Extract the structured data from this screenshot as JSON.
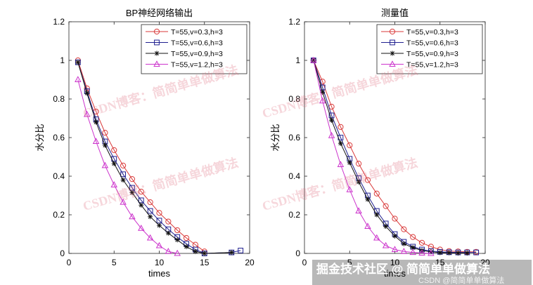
{
  "chart_data": [
    {
      "type": "line",
      "title": "BP神经网络输出",
      "xlabel": "times",
      "ylabel": "水分比",
      "xlim": [
        0,
        20
      ],
      "ylim": [
        0,
        1.2
      ],
      "xticks": [
        "0",
        "5",
        "10",
        "15",
        "20"
      ],
      "yticks": [
        "0",
        "0.2",
        "0.4",
        "0.6",
        "0.8",
        "1",
        "1.2"
      ],
      "grid": false,
      "legend_position": "top-right",
      "series": [
        {
          "name": "T=55,v=0.3,h=3",
          "color": "#d93a3a",
          "marker": "circle",
          "x": [
            1,
            2,
            3,
            4,
            5,
            6,
            7,
            8,
            9,
            10,
            11,
            12,
            13,
            14,
            15
          ],
          "y": [
            1.0,
            0.855,
            0.735,
            0.625,
            0.535,
            0.455,
            0.385,
            0.32,
            0.265,
            0.21,
            0.165,
            0.12,
            0.08,
            0.045,
            0.01
          ]
        },
        {
          "name": "T=55,v=0.6,h=3",
          "color": "#1f1f8f",
          "marker": "square",
          "x": [
            1,
            2,
            3,
            4,
            5,
            6,
            7,
            8,
            9,
            10,
            11,
            12,
            13,
            14,
            15,
            18,
            19
          ],
          "y": [
            0.99,
            0.84,
            0.695,
            0.58,
            0.49,
            0.41,
            0.34,
            0.275,
            0.22,
            0.17,
            0.125,
            0.085,
            0.05,
            0.02,
            0.0,
            0.005,
            0.015
          ]
        },
        {
          "name": "T=55,v=0.9,h=3",
          "color": "#111111",
          "marker": "asterisk",
          "x": [
            1,
            2,
            3,
            4,
            5,
            6,
            7,
            8,
            9,
            10,
            11,
            12,
            13,
            14,
            15,
            18
          ],
          "y": [
            0.99,
            0.83,
            0.68,
            0.56,
            0.465,
            0.38,
            0.315,
            0.25,
            0.19,
            0.145,
            0.105,
            0.07,
            0.035,
            0.01,
            0.0,
            0.005
          ]
        },
        {
          "name": "T=55,v=1.2,h=3",
          "color": "#cc33cc",
          "marker": "triangle",
          "x": [
            1,
            2,
            3,
            4,
            5,
            6,
            7,
            8,
            9,
            10,
            11,
            12
          ],
          "y": [
            0.9,
            0.72,
            0.58,
            0.455,
            0.355,
            0.265,
            0.19,
            0.13,
            0.08,
            0.04,
            0.01,
            0.0
          ]
        }
      ]
    },
    {
      "type": "line",
      "title": "测量值",
      "xlabel": "times",
      "ylabel": "水分比",
      "xlim": [
        0,
        20
      ],
      "ylim": [
        0,
        1.2
      ],
      "xticks": [
        "0",
        "5",
        "10",
        "15",
        "20"
      ],
      "yticks": [
        "0",
        "0.2",
        "0.4",
        "0.6",
        "0.8",
        "1",
        "1.2"
      ],
      "grid": false,
      "legend_position": "top-right",
      "series": [
        {
          "name": "T=55,v=0.3,h=3",
          "color": "#d93a3a",
          "marker": "circle",
          "x": [
            1,
            2,
            3,
            4,
            5,
            6,
            7,
            8,
            9,
            10,
            11,
            12,
            13,
            14,
            15,
            16,
            17,
            18,
            19
          ],
          "y": [
            1.0,
            0.89,
            0.76,
            0.655,
            0.56,
            0.465,
            0.38,
            0.31,
            0.245,
            0.18,
            0.125,
            0.085,
            0.055,
            0.035,
            0.02,
            0.012,
            0.01,
            0.008,
            0.008
          ]
        },
        {
          "name": "T=55,v=0.6,h=3",
          "color": "#1f1f8f",
          "marker": "square",
          "x": [
            1,
            2,
            3,
            4,
            5,
            6,
            7,
            8,
            9,
            10,
            11,
            12,
            13,
            14,
            15,
            16,
            17,
            18,
            19
          ],
          "y": [
            1.0,
            0.86,
            0.715,
            0.6,
            0.49,
            0.39,
            0.3,
            0.22,
            0.155,
            0.1,
            0.06,
            0.035,
            0.02,
            0.012,
            0.008,
            0.006,
            0.005,
            0.005,
            0.005
          ]
        },
        {
          "name": "T=55,v=0.9,h=3",
          "color": "#111111",
          "marker": "asterisk",
          "x": [
            1,
            2,
            3,
            4,
            5,
            6,
            7,
            8,
            9,
            10,
            11,
            12,
            13,
            14,
            15,
            16,
            17,
            18
          ],
          "y": [
            1.0,
            0.835,
            0.69,
            0.57,
            0.47,
            0.37,
            0.28,
            0.2,
            0.14,
            0.09,
            0.05,
            0.03,
            0.015,
            0.008,
            0.004,
            0.003,
            0.002,
            0.002
          ]
        },
        {
          "name": "T=55,v=1.2,h=3",
          "color": "#cc33cc",
          "marker": "triangle",
          "x": [
            1,
            2,
            3,
            4,
            5,
            6,
            7,
            8,
            9,
            10,
            11,
            12,
            13,
            14
          ],
          "y": [
            1.0,
            0.79,
            0.61,
            0.46,
            0.33,
            0.22,
            0.14,
            0.08,
            0.04,
            0.02,
            0.01,
            0.005,
            0.002,
            0.0
          ]
        }
      ]
    }
  ],
  "watermarks": [
    "CSDN博客：简简单单做算法",
    "CSDN博客：简简单单做算法",
    "CSDN博客：简简单单做算法",
    "CSDN博客：简简单单做算法"
  ],
  "footer": {
    "main": "掘金技术社区 @ 简简单单做算法",
    "sub": "CSDN @简简单单做算法"
  }
}
